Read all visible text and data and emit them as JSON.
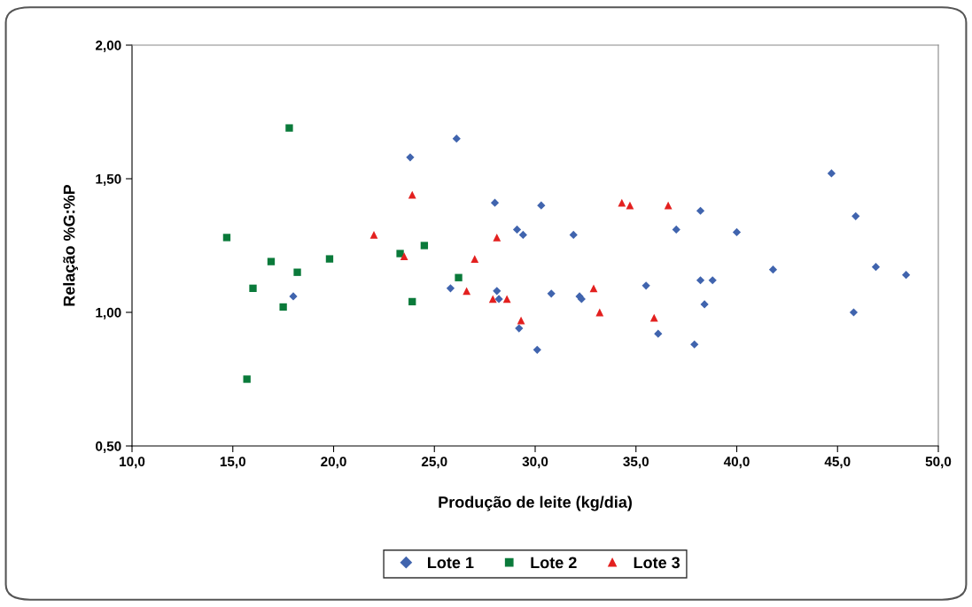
{
  "chart_data": {
    "type": "scatter",
    "xlabel": "Produção de leite (kg/dia)",
    "ylabel": "Relação %G:%P",
    "xlim": [
      10,
      50
    ],
    "ylim": [
      0.5,
      2.0
    ],
    "xticks": [
      {
        "value": 10,
        "label": "10,0"
      },
      {
        "value": 15,
        "label": "15,0"
      },
      {
        "value": 20,
        "label": "20,0"
      },
      {
        "value": 25,
        "label": "25,0"
      },
      {
        "value": 30,
        "label": "30,0"
      },
      {
        "value": 35,
        "label": "35,0"
      },
      {
        "value": 40,
        "label": "40,0"
      },
      {
        "value": 45,
        "label": "45,0"
      },
      {
        "value": 50,
        "label": "50,0"
      }
    ],
    "yticks": [
      {
        "value": 0.5,
        "label": "0,50"
      },
      {
        "value": 1.0,
        "label": "1,00"
      },
      {
        "value": 1.5,
        "label": "1,50"
      },
      {
        "value": 2.0,
        "label": "2,00"
      }
    ],
    "grid": false,
    "legend": "bottom",
    "series": [
      {
        "name": "Lote 1",
        "color": "#4064ae",
        "marker": "diamond",
        "x": [
          18.0,
          23.8,
          26.1,
          25.8,
          28.0,
          29.1,
          29.4,
          30.3,
          28.1,
          28.2,
          29.2,
          30.1,
          30.8,
          31.9,
          32.2,
          32.3,
          35.5,
          36.1,
          37.0,
          37.9,
          38.2,
          38.2,
          38.4,
          38.8,
          40.0,
          41.8,
          44.7,
          45.8,
          45.9,
          46.9,
          48.4
        ],
        "values": [
          1.06,
          1.58,
          1.65,
          1.09,
          1.41,
          1.31,
          1.29,
          1.4,
          1.08,
          1.05,
          0.94,
          0.86,
          1.07,
          1.29,
          1.06,
          1.05,
          1.1,
          0.92,
          1.31,
          0.88,
          1.38,
          1.12,
          1.03,
          1.12,
          1.3,
          1.16,
          1.52,
          1.0,
          1.36,
          1.17,
          1.14
        ]
      },
      {
        "name": "Lote 2",
        "color": "#0a7a3a",
        "marker": "square",
        "x": [
          17.8,
          14.7,
          16.9,
          18.2,
          16.0,
          17.5,
          19.8,
          23.3,
          24.5,
          26.2,
          23.9,
          15.7
        ],
        "values": [
          1.69,
          1.28,
          1.19,
          1.15,
          1.09,
          1.02,
          1.2,
          1.22,
          1.25,
          1.13,
          1.04,
          0.75
        ]
      },
      {
        "name": "Lote 3",
        "color": "#e3201f",
        "marker": "triangle",
        "x": [
          23.9,
          22.0,
          23.5,
          28.1,
          27.0,
          26.6,
          27.9,
          28.6,
          29.3,
          34.3,
          34.7,
          36.6,
          32.9,
          33.2,
          35.9
        ],
        "values": [
          1.44,
          1.29,
          1.21,
          1.28,
          1.2,
          1.08,
          1.05,
          1.05,
          0.97,
          1.41,
          1.4,
          1.4,
          1.09,
          1.0,
          0.98
        ]
      }
    ]
  }
}
